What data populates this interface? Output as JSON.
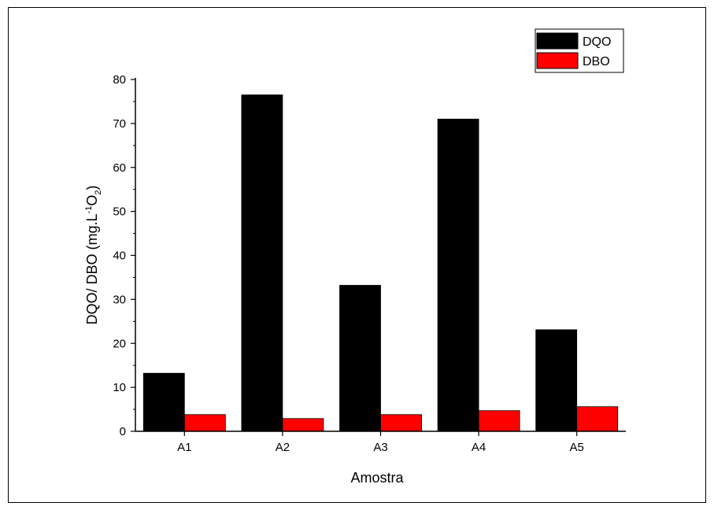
{
  "chart_data": {
    "type": "bar",
    "title": "",
    "xlabel": "Amostra",
    "ylabel": {
      "main": "DQO/ DBO (mg.L",
      "sup": "-1",
      "mid": "O",
      "sub": "2",
      "end": ")"
    },
    "categories": [
      "A1",
      "A2",
      "A3",
      "A4",
      "A5"
    ],
    "ylim": [
      0,
      80
    ],
    "yticks": [
      0,
      10,
      20,
      30,
      40,
      50,
      60,
      70,
      80
    ],
    "grid": false,
    "legend_position": "top-right",
    "series": [
      {
        "name": "DQO",
        "color": "#000000",
        "values": [
          13.2,
          76.5,
          33.2,
          71.0,
          23.1
        ]
      },
      {
        "name": "DBO",
        "color": "#ff0000",
        "values": [
          3.8,
          2.9,
          3.8,
          4.7,
          5.6
        ]
      }
    ]
  }
}
